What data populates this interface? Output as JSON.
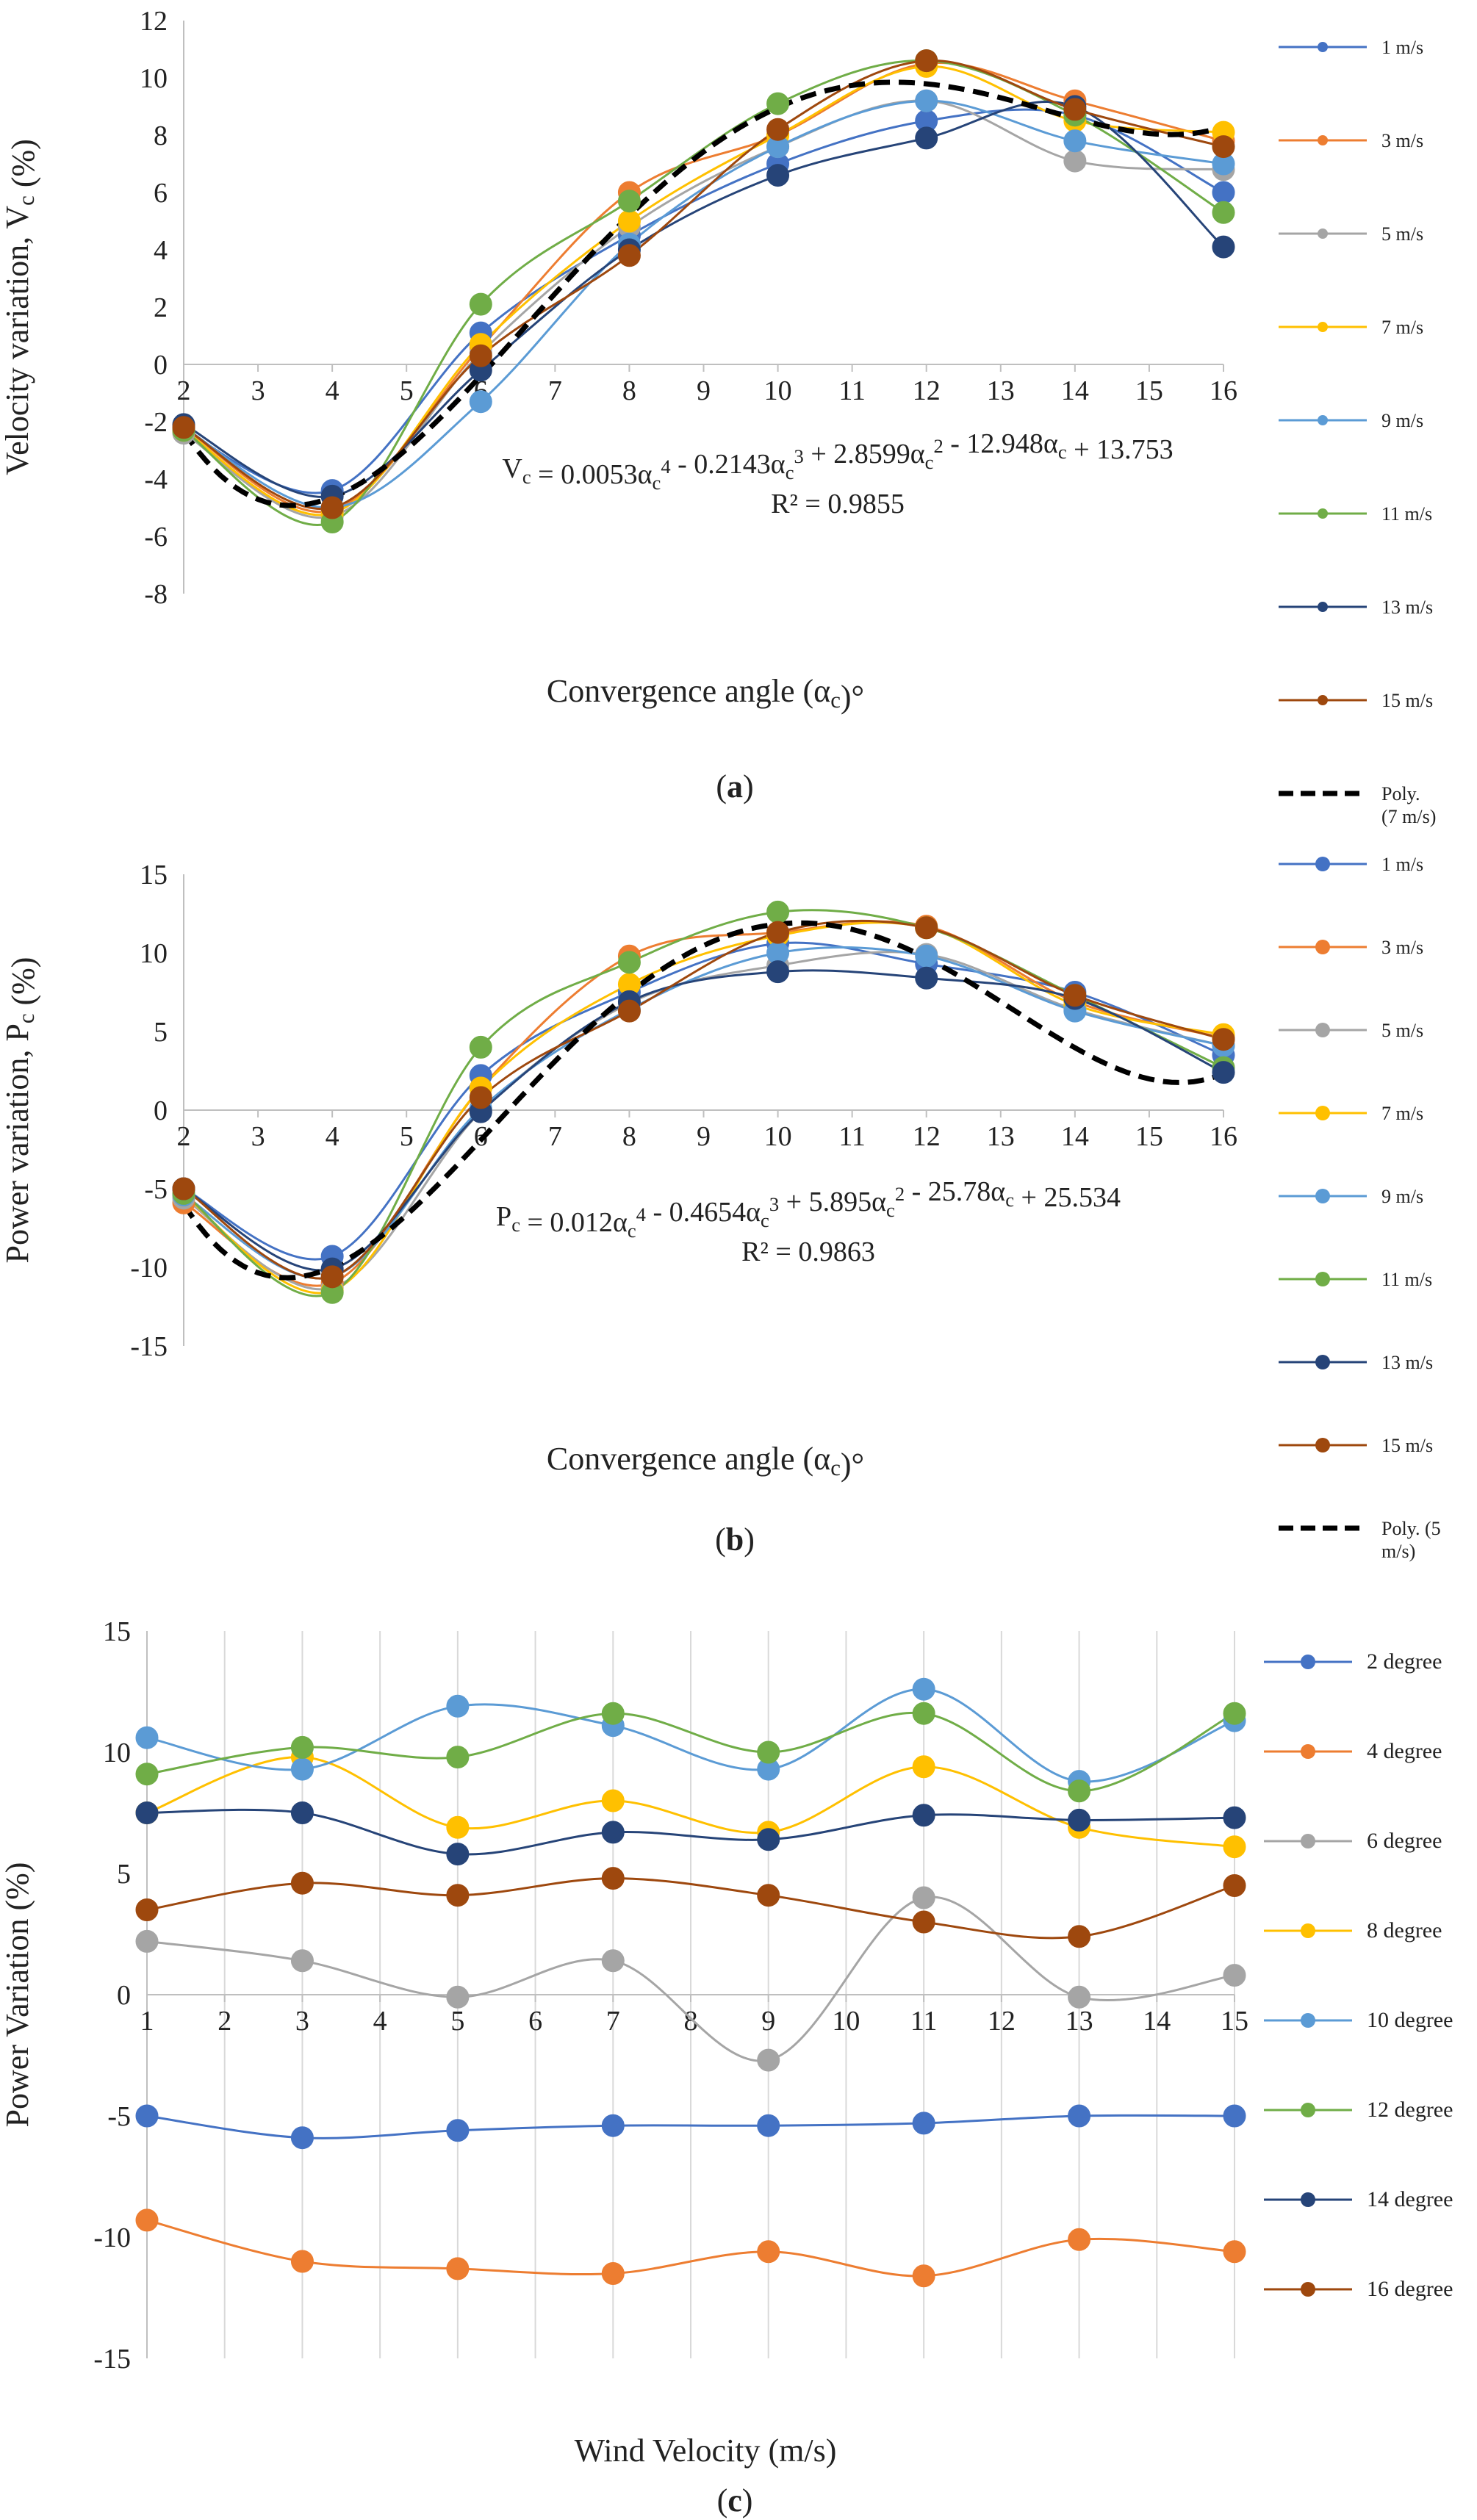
{
  "colors": {
    "1": "#4472C4",
    "3": "#ED7D31",
    "5": "#A5A5A5",
    "7": "#FFC000",
    "9": "#5B9BD5",
    "11": "#70AD47",
    "13": "#264478",
    "15": "#9E480E",
    "poly": "#000000"
  },
  "chart_data": [
    {
      "id": "a",
      "type": "line",
      "caption": "a",
      "xlabel": "Convergence angle (αc)°",
      "ylabel": "Velocity variation, Vc (%)",
      "x": [
        2,
        4,
        6,
        8,
        10,
        12,
        14,
        16
      ],
      "xlim": [
        2,
        16
      ],
      "ylim": [
        -8,
        12
      ],
      "xticks": [
        2,
        3,
        4,
        5,
        6,
        7,
        8,
        9,
        10,
        11,
        12,
        13,
        14,
        15,
        16
      ],
      "yticks": [
        -8,
        -6,
        -4,
        -2,
        0,
        2,
        4,
        6,
        8,
        10,
        12
      ],
      "equation": "Vc = 0.0053αc4 - 0.2143αc3 + 2.8599αc2 - 12.948αc + 13.753",
      "r2": "R² = 0.9855",
      "trend_label": "Poly. (7 m/s)",
      "trend_coeffs": [
        13.753,
        -12.948,
        2.8599,
        -0.2143,
        0.0053
      ],
      "series": [
        {
          "name": "1 m/s",
          "key": "1",
          "values": [
            -2.3,
            -4.4,
            1.1,
            4.5,
            7.0,
            8.5,
            8.7,
            6.0
          ]
        },
        {
          "name": "3 m/s",
          "key": "3",
          "values": [
            -2.2,
            -5.1,
            0.6,
            6.0,
            8.0,
            10.5,
            9.2,
            7.8
          ]
        },
        {
          "name": "5 m/s",
          "key": "5",
          "values": [
            -2.4,
            -5.3,
            0.4,
            4.8,
            7.6,
            9.2,
            7.1,
            6.8
          ]
        },
        {
          "name": "7 m/s",
          "key": "7",
          "values": [
            -2.3,
            -5.2,
            0.7,
            5.0,
            8.0,
            10.4,
            8.5,
            8.1
          ]
        },
        {
          "name": "9 m/s",
          "key": "9",
          "values": [
            -2.2,
            -5.0,
            -1.3,
            4.2,
            7.6,
            9.2,
            7.8,
            7.0
          ]
        },
        {
          "name": "11 m/s",
          "key": "11",
          "values": [
            -2.3,
            -5.5,
            2.1,
            5.7,
            9.1,
            10.6,
            8.7,
            5.3
          ]
        },
        {
          "name": "13 m/s",
          "key": "13",
          "values": [
            -2.1,
            -4.6,
            -0.2,
            4.0,
            6.6,
            7.9,
            9.0,
            4.1
          ]
        },
        {
          "name": "15 m/s",
          "key": "15",
          "values": [
            -2.2,
            -5.0,
            0.3,
            3.8,
            8.2,
            10.6,
            8.9,
            7.6
          ]
        }
      ]
    },
    {
      "id": "b",
      "type": "line",
      "caption": "b",
      "xlabel": "Convergence angle (αc)°",
      "ylabel": "Power variation, Pc (%)",
      "x": [
        2,
        4,
        6,
        8,
        10,
        12,
        14,
        16
      ],
      "xlim": [
        2,
        16
      ],
      "ylim": [
        -15,
        15
      ],
      "xticks": [
        2,
        3,
        4,
        5,
        6,
        7,
        8,
        9,
        10,
        11,
        12,
        13,
        14,
        15,
        16
      ],
      "yticks": [
        -15,
        -10,
        -5,
        0,
        5,
        10,
        15
      ],
      "equation": "Pc = 0.012αc4 - 0.4654αc3 + 5.895αc2 - 25.78αc + 25.534",
      "r2": "R² = 0.9863",
      "trend_label": "Poly. (5 m/s)",
      "trend_coeffs": [
        25.534,
        -25.78,
        5.895,
        -0.4654,
        0.012
      ],
      "series": [
        {
          "name": "1 m/s",
          "key": "1",
          "values": [
            -5.0,
            -9.3,
            2.2,
            7.5,
            10.6,
            9.3,
            7.5,
            3.5
          ]
        },
        {
          "name": "3 m/s",
          "key": "3",
          "values": [
            -5.9,
            -11.0,
            1.4,
            9.8,
            11.3,
            11.7,
            6.9,
            4.6
          ]
        },
        {
          "name": "5 m/s",
          "key": "5",
          "values": [
            -5.6,
            -11.3,
            -0.1,
            6.8,
            9.2,
            9.9,
            6.4,
            4.1
          ]
        },
        {
          "name": "7 m/s",
          "key": "7",
          "values": [
            -5.4,
            -11.5,
            1.4,
            8.0,
            11.1,
            11.6,
            6.7,
            4.8
          ]
        },
        {
          "name": "9 m/s",
          "key": "9",
          "values": [
            -5.4,
            -10.6,
            0.1,
            6.4,
            10.0,
            9.8,
            6.3,
            4.1
          ]
        },
        {
          "name": "11 m/s",
          "key": "11",
          "values": [
            -5.3,
            -11.6,
            4.0,
            9.4,
            12.6,
            11.6,
            7.3,
            2.7
          ]
        },
        {
          "name": "13 m/s",
          "key": "13",
          "values": [
            -5.0,
            -10.1,
            -0.1,
            6.9,
            8.8,
            8.4,
            7.1,
            2.4
          ]
        },
        {
          "name": "15 m/s",
          "key": "15",
          "values": [
            -5.0,
            -10.6,
            0.8,
            6.3,
            11.3,
            11.6,
            7.3,
            4.5
          ]
        }
      ]
    },
    {
      "id": "c",
      "type": "line",
      "caption": "c",
      "xlabel": "Wind Velocity (m/s)",
      "ylabel": "Power Variation (%)",
      "x": [
        1,
        3,
        5,
        7,
        9,
        11,
        13,
        15
      ],
      "xlim": [
        1,
        15
      ],
      "ylim": [
        -15,
        15
      ],
      "xticks": [
        1,
        2,
        3,
        4,
        5,
        6,
        7,
        8,
        9,
        10,
        11,
        12,
        13,
        14,
        15
      ],
      "yticks": [
        -15,
        -10,
        -5,
        0,
        5,
        10,
        15
      ],
      "series": [
        {
          "name": "2 degree",
          "key": "1",
          "values": [
            -5.0,
            -5.9,
            -5.6,
            -5.4,
            -5.4,
            -5.3,
            -5.0,
            -5.0
          ]
        },
        {
          "name": "4 degree",
          "key": "3",
          "values": [
            -9.3,
            -11.0,
            -11.3,
            -11.5,
            -10.6,
            -11.6,
            -10.1,
            -10.6
          ]
        },
        {
          "name": "6 degree",
          "key": "5",
          "values": [
            2.2,
            1.4,
            -0.1,
            1.4,
            -2.7,
            4.0,
            -0.1,
            0.8
          ]
        },
        {
          "name": "8 degree",
          "key": "7",
          "values": [
            7.5,
            9.8,
            6.9,
            8.0,
            6.7,
            9.4,
            6.9,
            6.1
          ]
        },
        {
          "name": "10 degree",
          "key": "9",
          "values": [
            10.6,
            9.3,
            11.9,
            11.1,
            9.3,
            12.6,
            8.8,
            11.3
          ]
        },
        {
          "name": "12 degree",
          "key": "11",
          "values": [
            9.1,
            10.2,
            9.8,
            11.6,
            10.0,
            11.6,
            8.4,
            11.6
          ]
        },
        {
          "name": "14 degree",
          "key": "13",
          "values": [
            7.5,
            7.5,
            5.8,
            6.7,
            6.4,
            7.4,
            7.2,
            7.3
          ]
        },
        {
          "name": "16 degree",
          "key": "15",
          "values": [
            3.5,
            4.6,
            4.1,
            4.8,
            4.1,
            3.0,
            2.4,
            4.5
          ]
        }
      ]
    }
  ]
}
